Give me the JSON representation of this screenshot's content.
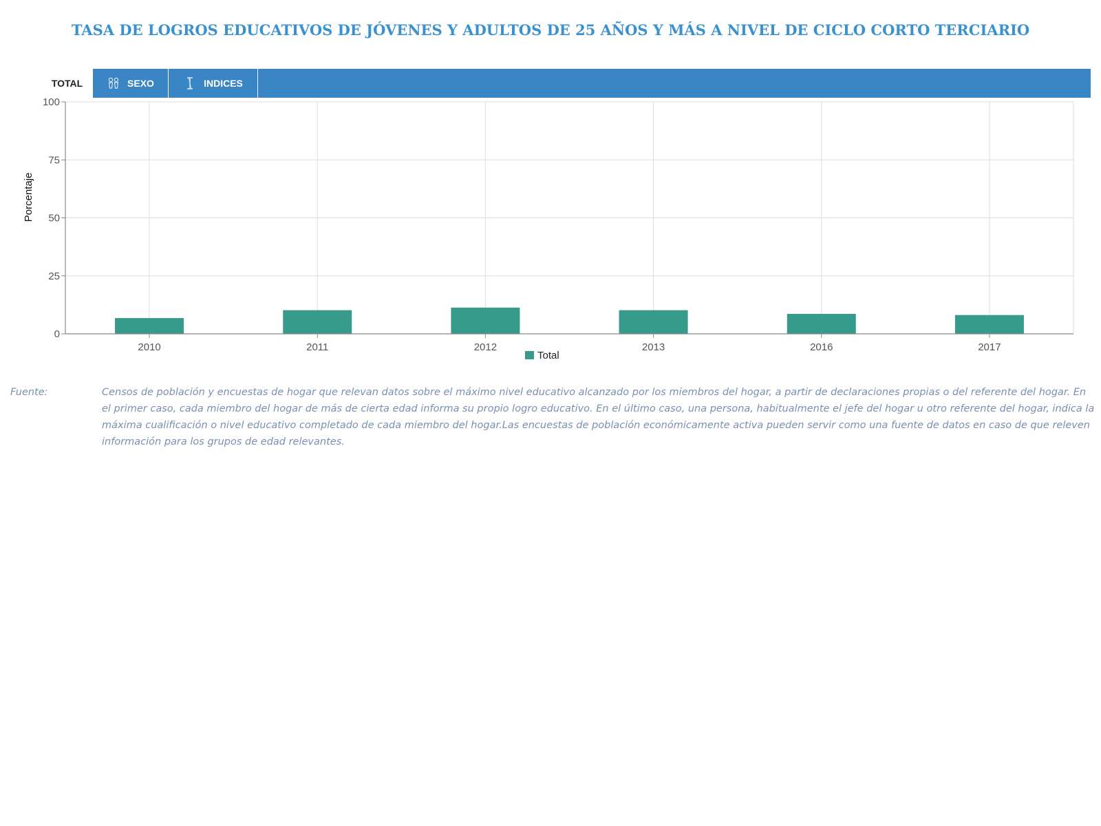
{
  "page": {
    "title": "TASA DE LOGROS EDUCATIVOS DE JÓVENES Y ADULTOS DE 25 AÑOS Y MÁS A NIVEL DE CICLO CORTO TERCIARIO"
  },
  "tabs": {
    "total_label": "TOTAL",
    "sexo_label": "SEXO",
    "sexo_icon": "gender-icon",
    "indices_label": "INDICES",
    "indices_icon": "index-cursor-icon"
  },
  "colors": {
    "title": "#3a91d0",
    "tab_bar": "#3a86c4",
    "bar": "#369b8a",
    "source_text": "#7a8fb3"
  },
  "chart_data": {
    "type": "bar",
    "categories": [
      "2010",
      "2011",
      "2012",
      "2013",
      "2016",
      "2017"
    ],
    "series": [
      {
        "name": "Total",
        "values": [
          6.8,
          10.2,
          11.3,
          10.2,
          8.6,
          8.1
        ]
      }
    ],
    "title": "",
    "xlabel": "",
    "ylabel": "Porcentaje",
    "ylim": [
      0,
      100
    ],
    "yticks": [
      0,
      25,
      50,
      75,
      100
    ],
    "grid": true,
    "legend": "bottom-center"
  },
  "source": {
    "label": "Fuente:",
    "text": "Censos de población y encuestas de hogar que relevan datos sobre el máximo nivel educativo alcanzado por los miembros del hogar, a partir de declaraciones propias o del referente del hogar. En el primer caso, cada miembro del hogar de más de cierta edad informa su propio logro educativo. En el último caso, una persona, habitualmente el jefe del hogar u otro referente del hogar, indica la máxima cualificación o nivel educativo completado de cada miembro del hogar.Las encuestas de población económicamente activa pueden servir como una fuente de datos en caso de que releven información para los grupos de edad relevantes."
  }
}
